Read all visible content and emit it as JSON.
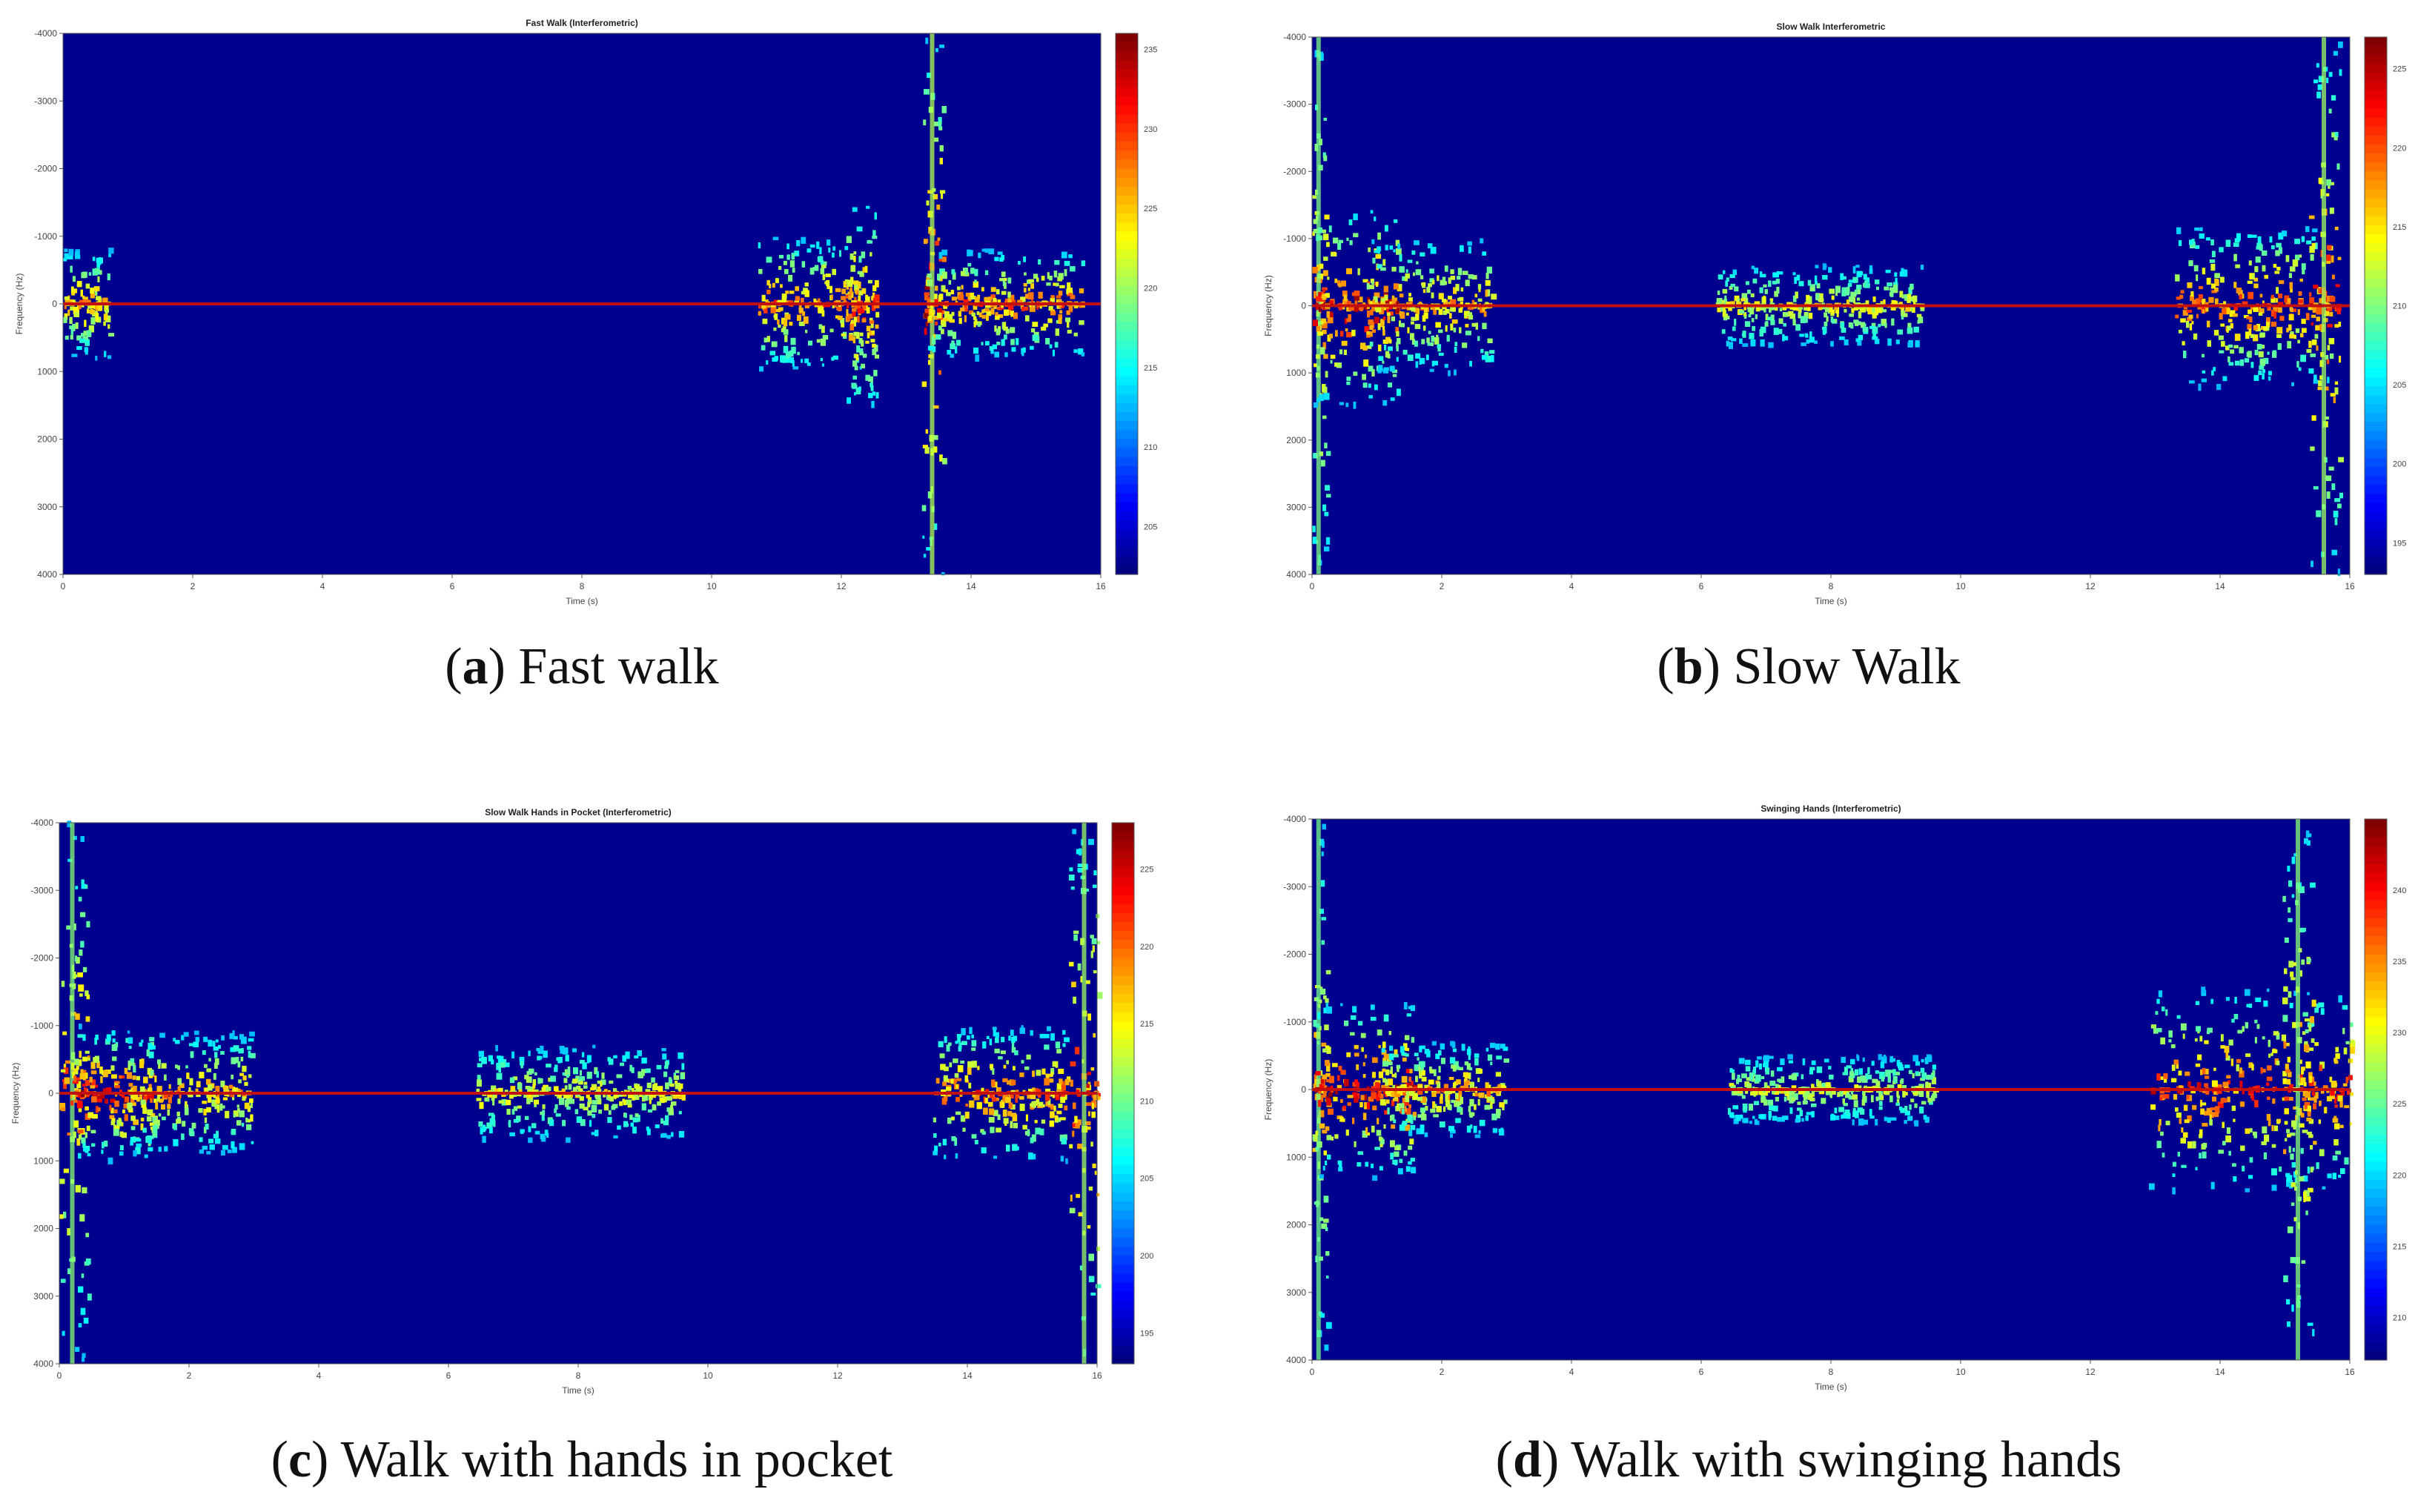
{
  "chart_data": [
    {
      "type": "heatmap",
      "panel_letter": "a",
      "caption": "Fast walk",
      "title": "Fast Walk (Interferometric)",
      "xlabel": "Time (s)",
      "ylabel": "Frequency (Hz)",
      "xlim": [
        0,
        16
      ],
      "ylim": [
        -4000,
        4000
      ],
      "xticks": [
        "0",
        "2",
        "4",
        "6",
        "8",
        "10",
        "12",
        "14",
        "16"
      ],
      "yticks": [
        "-4000",
        "-3000",
        "-2000",
        "-1000",
        "0",
        "1000",
        "2000",
        "3000",
        "4000"
      ],
      "colorbar": {
        "ticks": [
          "235",
          "230",
          "225",
          "220",
          "215",
          "210",
          "205"
        ],
        "range": [
          202,
          236
        ]
      },
      "activity": [
        {
          "t": 0.3,
          "spread": 800,
          "level": 0.7,
          "width": 0.5
        },
        {
          "t": 11.5,
          "spread": 1000,
          "level": 0.8,
          "width": 1.0
        },
        {
          "t": 12.3,
          "spread": 1600,
          "level": 0.85,
          "width": 0.3
        },
        {
          "t": 13.4,
          "spread": 4000,
          "level": 1.0,
          "width": 0.2
        },
        {
          "t": 14.5,
          "spread": 800,
          "level": 0.8,
          "width": 1.5
        }
      ]
    },
    {
      "type": "heatmap",
      "panel_letter": "b",
      "caption": "Slow Walk",
      "title": "Slow Walk Interferometric",
      "xlabel": "Time (s)",
      "ylabel": "Frequency (Hz)",
      "xlim": [
        0,
        16
      ],
      "ylim": [
        -4000,
        4000
      ],
      "xticks": [
        "0",
        "2",
        "4",
        "6",
        "8",
        "10",
        "12",
        "14",
        "16"
      ],
      "yticks": [
        "-4000",
        "-3000",
        "-2000",
        "-1000",
        "0",
        "1000",
        "2000",
        "3000",
        "4000"
      ],
      "colorbar": {
        "ticks": [
          "225",
          "220",
          "215",
          "210",
          "205",
          "200",
          "195"
        ],
        "range": [
          193,
          227
        ]
      },
      "activity": [
        {
          "t": 0.1,
          "spread": 4000,
          "level": 0.75,
          "width": 0.15
        },
        {
          "t": 0.6,
          "spread": 1500,
          "level": 1.0,
          "width": 0.9
        },
        {
          "t": 1.8,
          "spread": 1000,
          "level": 0.7,
          "width": 1.2
        },
        {
          "t": 7.8,
          "spread": 600,
          "level": 0.55,
          "width": 2.0
        },
        {
          "t": 14.5,
          "spread": 1200,
          "level": 0.85,
          "width": 1.5
        },
        {
          "t": 15.6,
          "spread": 4000,
          "level": 0.9,
          "width": 0.3
        }
      ]
    },
    {
      "type": "heatmap",
      "panel_letter": "c",
      "caption": "Walk with hands in pocket",
      "title": "Slow Walk Hands in Pocket (Interferometric)",
      "xlabel": "Time (s)",
      "ylabel": "Frequency (Hz)",
      "xlim": [
        0,
        16
      ],
      "ylim": [
        -4000,
        4000
      ],
      "xticks": [
        "0",
        "2",
        "4",
        "6",
        "8",
        "10",
        "12",
        "14",
        "16"
      ],
      "yticks": [
        "-4000",
        "-3000",
        "-2000",
        "-1000",
        "0",
        "1000",
        "2000",
        "3000",
        "4000"
      ],
      "colorbar": {
        "ticks": [
          "225",
          "220",
          "215",
          "210",
          "205",
          "200",
          "195"
        ],
        "range": [
          193,
          228
        ]
      },
      "activity": [
        {
          "t": 0.2,
          "spread": 4000,
          "level": 0.8,
          "width": 0.3
        },
        {
          "t": 0.8,
          "spread": 1000,
          "level": 1.0,
          "width": 0.8
        },
        {
          "t": 2.0,
          "spread": 900,
          "level": 0.7,
          "width": 1.2
        },
        {
          "t": 8.0,
          "spread": 700,
          "level": 0.55,
          "width": 2.0
        },
        {
          "t": 14.5,
          "spread": 1000,
          "level": 0.8,
          "width": 1.3
        },
        {
          "t": 15.8,
          "spread": 4000,
          "level": 0.9,
          "width": 0.3
        }
      ]
    },
    {
      "type": "heatmap",
      "panel_letter": "d",
      "caption": "Walk with swinging hands",
      "title": "Swinging Hands (Interferometric)",
      "xlabel": "Time (s)",
      "ylabel": "Frequency (Hz)",
      "xlim": [
        0,
        16
      ],
      "ylim": [
        -4000,
        4000
      ],
      "xticks": [
        "0",
        "2",
        "4",
        "6",
        "8",
        "10",
        "12",
        "14",
        "16"
      ],
      "yticks": [
        "-4000",
        "-3000",
        "-2000",
        "-1000",
        "0",
        "1000",
        "2000",
        "3000",
        "4000"
      ],
      "colorbar": {
        "ticks": [
          "240",
          "235",
          "230",
          "225",
          "220",
          "215",
          "210"
        ],
        "range": [
          207,
          245
        ]
      },
      "activity": [
        {
          "t": 0.1,
          "spread": 4000,
          "level": 0.7,
          "width": 0.15
        },
        {
          "t": 0.8,
          "spread": 1300,
          "level": 1.0,
          "width": 1.0
        },
        {
          "t": 2.0,
          "spread": 700,
          "level": 0.7,
          "width": 1.2
        },
        {
          "t": 8.0,
          "spread": 500,
          "level": 0.5,
          "width": 2.0
        },
        {
          "t": 14.5,
          "spread": 1500,
          "level": 0.9,
          "width": 2.0
        },
        {
          "t": 15.2,
          "spread": 4000,
          "level": 0.8,
          "width": 0.3
        }
      ]
    }
  ]
}
